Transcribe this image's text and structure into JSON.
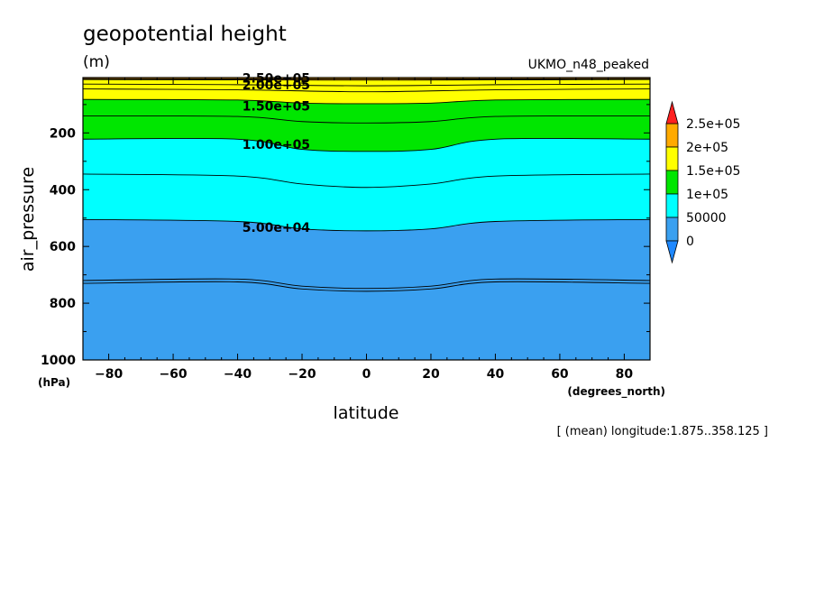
{
  "chart_data": {
    "type": "heatmap",
    "title": "geopotential height",
    "units": "(m)",
    "dataset": "UKMO_n48_peaked",
    "xlabel": "latitude",
    "x_unit": "(degrees_north)",
    "ylabel": "air_pressure",
    "y_unit": "(hPa)",
    "annotation": "[ (mean) longitude:1.875..358.125 ]",
    "xlim": [
      -88,
      88
    ],
    "ylim": [
      1000,
      5
    ],
    "y_direction": "reversed",
    "x_ticks": [
      "-80",
      "-60",
      "-40",
      "-20",
      "0",
      "20",
      "40",
      "60",
      "80"
    ],
    "y_ticks": [
      "200",
      "400",
      "600",
      "800",
      "1000"
    ],
    "colorbar": {
      "labels": [
        "0",
        "50000",
        "1e+05",
        "1.5e+05",
        "2e+05",
        "2.5e+05"
      ],
      "levels": [
        0,
        50000,
        100000,
        150000,
        200000,
        250000
      ],
      "colors": [
        "#1e88ff",
        "#3aa0f0",
        "#00ffff",
        "#00e600",
        "#ffff00",
        "#ffaa00",
        "#ff2020"
      ]
    },
    "bands": [
      {
        "value": 250000,
        "color": "#ff2020",
        "profile": [
          [
            -88,
            5
          ],
          [
            88,
            5
          ]
        ]
      },
      {
        "value": 200000,
        "color": "#ffaa00",
        "profile": [
          [
            -88,
            12
          ],
          [
            -40,
            13
          ],
          [
            0,
            14
          ],
          [
            40,
            13
          ],
          [
            88,
            12
          ]
        ]
      },
      {
        "value": 150000,
        "color": "#ffff00",
        "profile": [
          [
            -88,
            82
          ],
          [
            -40,
            84
          ],
          [
            -20,
            95
          ],
          [
            0,
            97
          ],
          [
            20,
            95
          ],
          [
            40,
            84
          ],
          [
            88,
            82
          ]
        ]
      },
      {
        "value": 100000,
        "color": "#00e600",
        "profile": [
          [
            -88,
            222
          ],
          [
            -40,
            222
          ],
          [
            -20,
            258
          ],
          [
            0,
            265
          ],
          [
            20,
            258
          ],
          [
            40,
            222
          ],
          [
            88,
            222
          ]
        ]
      },
      {
        "value": 50000,
        "color": "#00ffff",
        "profile": [
          [
            -88,
            505
          ],
          [
            -40,
            512
          ],
          [
            -20,
            538
          ],
          [
            0,
            545
          ],
          [
            20,
            538
          ],
          [
            40,
            512
          ],
          [
            88,
            505
          ]
        ]
      }
    ],
    "background_color": "#3aa0f0",
    "contour_lines": [
      {
        "value": 220000,
        "profile": [
          [
            -88,
            9
          ],
          [
            0,
            10
          ],
          [
            88,
            9
          ]
        ]
      },
      {
        "value": 200000,
        "profile": [
          [
            -88,
            12
          ],
          [
            -40,
            13
          ],
          [
            0,
            14
          ],
          [
            40,
            13
          ],
          [
            88,
            12
          ]
        ]
      },
      {
        "value": 180000,
        "profile": [
          [
            -88,
            28
          ],
          [
            -40,
            30
          ],
          [
            0,
            34
          ],
          [
            40,
            30
          ],
          [
            88,
            28
          ]
        ]
      },
      {
        "value": 170000,
        "profile": [
          [
            -88,
            45
          ],
          [
            -40,
            48
          ],
          [
            0,
            55
          ],
          [
            40,
            48
          ],
          [
            88,
            45
          ]
        ]
      },
      {
        "value": 150000,
        "profile": [
          [
            -88,
            82
          ],
          [
            -40,
            84
          ],
          [
            -20,
            95
          ],
          [
            0,
            97
          ],
          [
            20,
            95
          ],
          [
            40,
            84
          ],
          [
            88,
            82
          ]
        ]
      },
      {
        "value": 130000,
        "profile": [
          [
            -88,
            140
          ],
          [
            -40,
            142
          ],
          [
            -20,
            160
          ],
          [
            0,
            165
          ],
          [
            20,
            160
          ],
          [
            40,
            142
          ],
          [
            88,
            140
          ]
        ]
      },
      {
        "value": 100000,
        "profile": [
          [
            -88,
            222
          ],
          [
            -40,
            222
          ],
          [
            -20,
            258
          ],
          [
            0,
            265
          ],
          [
            20,
            258
          ],
          [
            40,
            222
          ],
          [
            88,
            222
          ]
        ]
      },
      {
        "value": 75000,
        "profile": [
          [
            -88,
            345
          ],
          [
            -40,
            352
          ],
          [
            -20,
            380
          ],
          [
            0,
            392
          ],
          [
            20,
            380
          ],
          [
            40,
            352
          ],
          [
            88,
            345
          ]
        ]
      },
      {
        "value": 50000,
        "profile": [
          [
            -88,
            505
          ],
          [
            -40,
            512
          ],
          [
            -20,
            538
          ],
          [
            0,
            545
          ],
          [
            20,
            538
          ],
          [
            40,
            512
          ],
          [
            88,
            505
          ]
        ]
      },
      {
        "value": 20000,
        "profile": [
          [
            -88,
            720
          ],
          [
            -40,
            715
          ],
          [
            -20,
            740
          ],
          [
            0,
            748
          ],
          [
            20,
            740
          ],
          [
            40,
            715
          ],
          [
            88,
            720
          ]
        ]
      },
      {
        "value": 19000,
        "profile": [
          [
            -88,
            730
          ],
          [
            -40,
            725
          ],
          [
            -20,
            750
          ],
          [
            0,
            758
          ],
          [
            20,
            750
          ],
          [
            40,
            725
          ],
          [
            88,
            730
          ]
        ]
      }
    ],
    "contour_labels": [
      {
        "text": "2.50e+05",
        "x": -28,
        "y": 6
      },
      {
        "text": "2.00e+05",
        "x": -28,
        "y": 30
      },
      {
        "text": "1.50e+05",
        "x": -28,
        "y": 105
      },
      {
        "text": "1.00e+05",
        "x": -28,
        "y": 240
      },
      {
        "text": "5.00e+04",
        "x": -28,
        "y": 532
      }
    ]
  }
}
